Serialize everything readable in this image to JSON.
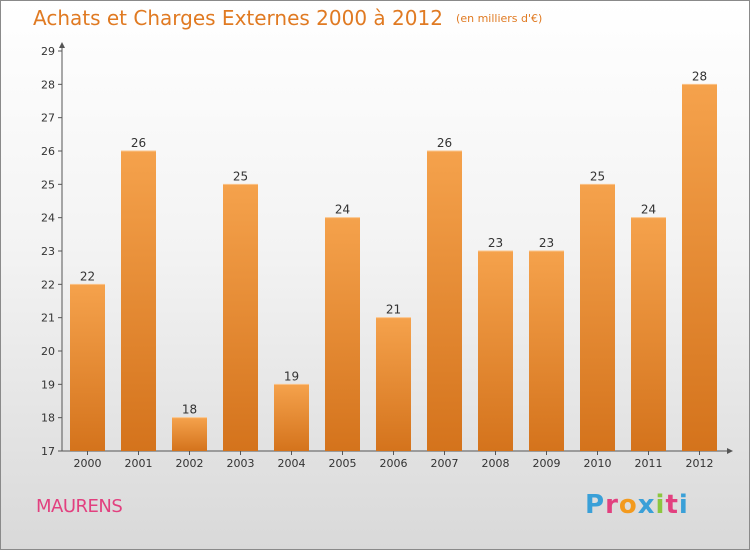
{
  "header": {
    "title": "Achats et Charges Externes 2000 à 2012",
    "subtitle": "(en milliers d'€)"
  },
  "footer": {
    "commune": "MAURENS",
    "logo_text": "Proxiti"
  },
  "colors": {
    "title": "#e07a22",
    "commune": "#e2407f",
    "bar_top": "#f5a24c",
    "bar_bottom": "#d4731c",
    "logo_letters": [
      "#3aa0d8",
      "#e2407f",
      "#f39a1e",
      "#3aa0d8",
      "#8cc63f",
      "#e2407f",
      "#3aa0d8"
    ]
  },
  "chart_data": {
    "type": "bar",
    "categories": [
      "2000",
      "2001",
      "2002",
      "2003",
      "2004",
      "2005",
      "2006",
      "2007",
      "2008",
      "2009",
      "2010",
      "2011",
      "2012"
    ],
    "values": [
      22,
      26,
      18,
      25,
      19,
      24,
      21,
      26,
      23,
      23,
      25,
      24,
      28
    ],
    "data_labels": [
      "22",
      "26",
      "18",
      "25",
      "19",
      "24",
      "21",
      "26",
      "23",
      "23",
      "25",
      "24",
      "28"
    ],
    "yticks": [
      "17",
      "18",
      "19",
      "20",
      "21",
      "22",
      "23",
      "24",
      "25",
      "26",
      "27",
      "28",
      "29"
    ],
    "ylim": [
      17,
      29
    ],
    "grid": false,
    "legend": "none"
  }
}
